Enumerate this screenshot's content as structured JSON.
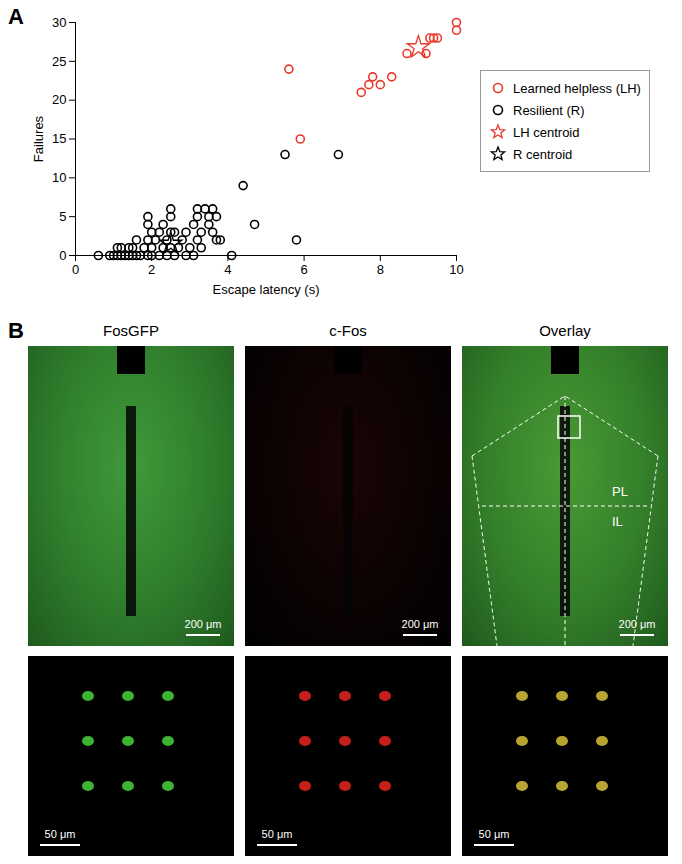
{
  "chart_data": {
    "type": "scatter",
    "panel_label": "A",
    "x_label": "Escape latency (s)",
    "y_label": "Failures",
    "xlim": [
      0,
      10
    ],
    "xticks": [
      0,
      2,
      4,
      6,
      8,
      10
    ],
    "ylim": [
      0,
      30
    ],
    "yticks": [
      0,
      5,
      10,
      15,
      20,
      25,
      30
    ],
    "legend": "right",
    "series": [
      {
        "name": "Learned helpless (LH)",
        "color": "#e8392b",
        "marker": "circle",
        "x": [
          5.6,
          5.9,
          7.5,
          7.7,
          7.8,
          8.0,
          8.3,
          8.7,
          9.2,
          9.3,
          9.4,
          9.5,
          10.0,
          10.0
        ],
        "values": [
          24,
          15,
          21,
          22,
          23,
          22,
          23,
          26,
          26,
          28,
          28,
          28,
          30,
          29
        ]
      },
      {
        "name": "Resilient (R)",
        "color": "#000000",
        "marker": "circle",
        "x": [
          0.6,
          0.9,
          1.0,
          1.1,
          1.2,
          1.3,
          1.4,
          1.5,
          1.6,
          1.7,
          1.9,
          2.0,
          2.2,
          2.4,
          2.6,
          2.9,
          3.1,
          4.1,
          1.1,
          1.2,
          1.4,
          1.5,
          1.8,
          2.0,
          2.3,
          2.5,
          2.7,
          3.0,
          3.3,
          1.6,
          1.9,
          2.1,
          2.4,
          2.8,
          3.2,
          3.7,
          3.8,
          5.8,
          2.0,
          2.2,
          2.5,
          2.6,
          2.9,
          3.3,
          3.6,
          1.9,
          2.3,
          3.1,
          3.5,
          4.7,
          1.9,
          2.5,
          3.2,
          3.5,
          3.7,
          2.5,
          3.2,
          3.4,
          3.6,
          4.4,
          5.5,
          6.9
        ],
        "values": [
          0,
          0,
          0,
          0,
          0,
          0,
          0,
          0,
          0,
          0,
          0,
          0,
          0,
          0,
          0,
          0,
          0,
          0,
          1,
          1,
          1,
          1,
          1,
          1,
          1,
          1,
          1,
          1,
          1,
          2,
          2,
          2,
          2,
          2,
          2,
          2,
          2,
          2,
          3,
          3,
          3,
          3,
          3,
          3,
          3,
          4,
          4,
          4,
          4,
          4,
          5,
          5,
          5,
          5,
          5,
          6,
          6,
          6,
          6,
          9,
          13,
          13
        ]
      },
      {
        "name": "LH centroid",
        "color": "#e8392b",
        "marker": "star",
        "x": [
          9.0
        ],
        "values": [
          26.8
        ]
      },
      {
        "name": "R centroid",
        "color": "#000000",
        "marker": "star",
        "x": [
          2.5
        ],
        "values": [
          1.5
        ]
      }
    ]
  },
  "panel_B": {
    "panel_label": "B",
    "columns": [
      "FosGFP",
      "c-Fos",
      "Overlay"
    ],
    "regions": [
      "PL",
      "IL"
    ],
    "rows": [
      {
        "scale_bar": "200 μm"
      },
      {
        "scale_bar": "50 μm"
      }
    ]
  }
}
